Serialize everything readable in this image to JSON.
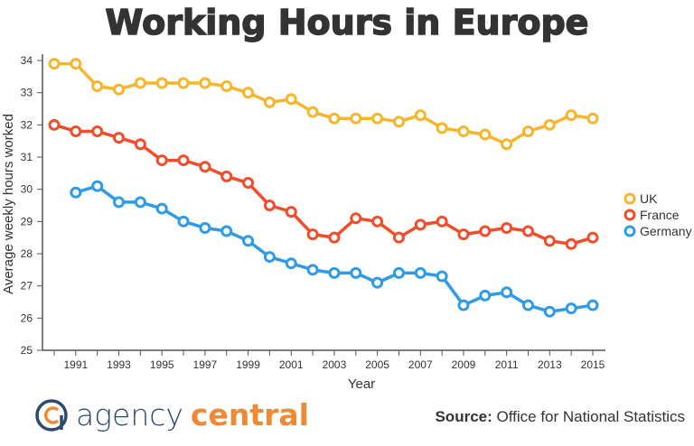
{
  "chart_data": {
    "type": "line",
    "title": "Working Hours in Europe",
    "xlabel": "Year",
    "ylabel": "Average weekly hours worked",
    "ylim": [
      25,
      34
    ],
    "xlim": [
      1990,
      2015
    ],
    "yticks": [
      25,
      26,
      27,
      28,
      29,
      30,
      31,
      32,
      33,
      34
    ],
    "xticklabels": [
      "1991",
      "1993",
      "1995",
      "1997",
      "1999",
      "2001",
      "2003",
      "2005",
      "2007",
      "2009",
      "2011",
      "2013",
      "2015"
    ],
    "grid": false,
    "legend_position": "right",
    "x": [
      1990,
      1991,
      1992,
      1993,
      1994,
      1995,
      1996,
      1997,
      1998,
      1999,
      2000,
      2001,
      2002,
      2003,
      2004,
      2005,
      2006,
      2007,
      2008,
      2009,
      2010,
      2011,
      2012,
      2013,
      2014,
      2015
    ],
    "series": [
      {
        "name": "UK",
        "color": "#f7b52c",
        "values": [
          33.9,
          33.9,
          33.2,
          33.1,
          33.3,
          33.3,
          33.3,
          33.3,
          33.2,
          33.0,
          32.7,
          32.8,
          32.4,
          32.2,
          32.2,
          32.2,
          32.1,
          32.3,
          31.9,
          31.8,
          31.7,
          31.4,
          31.8,
          32.0,
          32.3,
          32.2
        ]
      },
      {
        "name": "France",
        "color": "#f24d2a",
        "values": [
          32.0,
          31.8,
          31.8,
          31.6,
          31.4,
          30.9,
          30.9,
          30.7,
          30.4,
          30.2,
          29.5,
          29.3,
          28.6,
          28.5,
          29.1,
          29.0,
          28.5,
          28.9,
          29.0,
          28.6,
          28.7,
          28.8,
          28.7,
          28.4,
          28.3,
          28.5
        ]
      },
      {
        "name": "Germany",
        "color": "#2e9be8",
        "values": [
          null,
          29.9,
          30.1,
          29.6,
          29.6,
          29.4,
          29.0,
          28.8,
          28.7,
          28.4,
          27.9,
          27.7,
          27.5,
          27.4,
          27.4,
          27.1,
          27.4,
          27.4,
          27.3,
          26.4,
          26.7,
          26.8,
          26.4,
          26.2,
          26.3,
          26.4
        ]
      }
    ]
  },
  "footer": {
    "logo_text_1": "agency",
    "logo_text_2": "central",
    "logo_colors": {
      "blue": "#2c4a6b",
      "orange": "#ee8a34"
    },
    "source_label": "Source:",
    "source_text": "Office for National Statistics"
  }
}
